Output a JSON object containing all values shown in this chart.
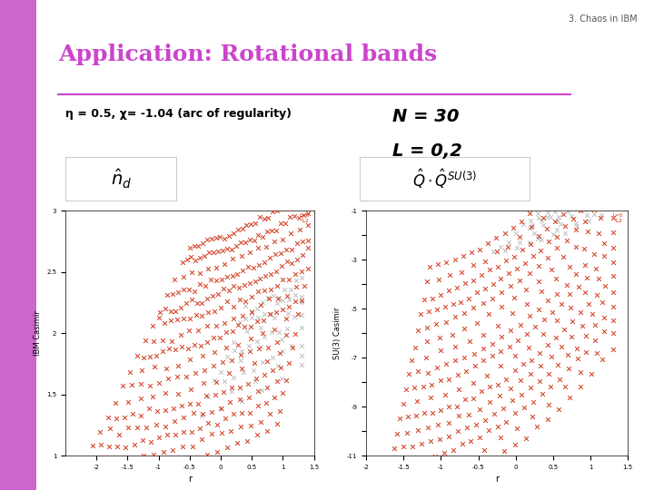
{
  "title_slide": "3. Chaos in IBM",
  "main_title": "Application: Rotational bands",
  "subtitle": "η = 0.5, χ= -1.04 (arc of regularity)",
  "n_label": "N = 30",
  "l_label": "L = 0,2",
  "bg_color": "#ffffff",
  "slide_bg": "#ede8f0",
  "left_bar_color": "#cc66cc",
  "title_color": "#cc44cc",
  "red_color": "#cc2200",
  "gray_color": "#aaaaaa",
  "plot1_xlabel": "r",
  "plot1_ylabel": "IBM Casimir",
  "plot1_xlim": [
    -2.5,
    1.5
  ],
  "plot1_ylim": [
    1.0,
    3.0
  ],
  "plot2_xlabel": "r",
  "plot2_ylabel": "SU(3) Casimir",
  "plot2_xlim": [
    -2.0,
    1.5
  ],
  "plot2_ylim": [
    -11.0,
    -1.0
  ],
  "seed": 42
}
